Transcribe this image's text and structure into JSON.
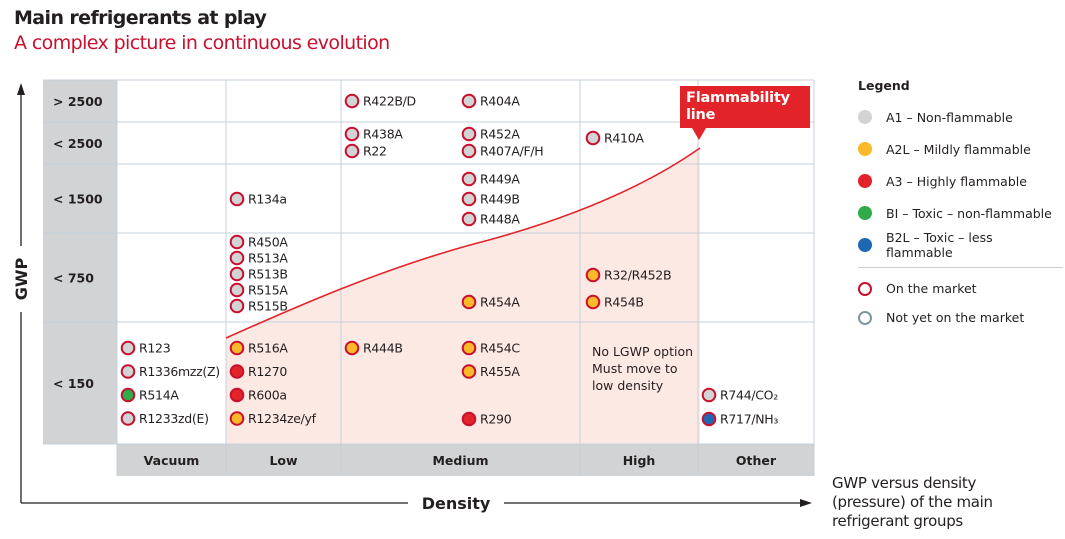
{
  "header": {
    "title": "Main refrigerants at play",
    "subtitle": "A complex picture in continuous evolution"
  },
  "chart_data": {
    "type": "table",
    "title": "Main refrigerants at play",
    "subtitle": "A complex picture in continuous evolution",
    "xlabel": "Density",
    "ylabel": "GWP",
    "x_categories": [
      "Vacuum",
      "Low",
      "Medium",
      "High",
      "Other"
    ],
    "y_categories": [
      "> 2500",
      "< 2500",
      "< 1500",
      "< 750",
      "< 150"
    ],
    "flammability_line_label": "Flammability line",
    "note": {
      "row": "< 150",
      "column": "High",
      "lines": [
        "No LGWP option",
        "Must move to",
        "low density"
      ]
    },
    "caption": [
      "GWP versus density",
      "(pressure) of the main",
      "refrigerant groups"
    ],
    "legend": {
      "title": "Legend",
      "classes": [
        {
          "key": "A1",
          "label": "A1 – Non-flammable",
          "color": "#d1d3d4"
        },
        {
          "key": "A2L",
          "label": "A2L –  Mildly flammable",
          "color": "#fbb829"
        },
        {
          "key": "A3",
          "label": "A3 –  Highly flammable",
          "color": "#e3232a"
        },
        {
          "key": "B1",
          "label": "BI – Toxic – non-flammable",
          "color": "#2fab4a"
        },
        {
          "key": "B2L",
          "label": "B2L – Toxic – less flammable",
          "color": "#1e68b3"
        }
      ],
      "status": [
        {
          "key": "on_market",
          "label": "On the market",
          "color": "#c8102e"
        },
        {
          "key": "not_yet",
          "label": "Not yet on the market",
          "color": "#7f95a3"
        }
      ]
    },
    "refrigerants": [
      {
        "name": "R422B/D",
        "column": "Medium",
        "row": "> 2500",
        "class": "A1",
        "status": "on_market",
        "slot": 0,
        "sub": 0
      },
      {
        "name": "R404A",
        "column": "Medium",
        "row": "> 2500",
        "class": "A1",
        "status": "on_market",
        "slot": 1,
        "sub": 0
      },
      {
        "name": "R438A",
        "column": "Medium",
        "row": "< 2500",
        "class": "A1",
        "status": "on_market",
        "slot": 0,
        "sub": 0
      },
      {
        "name": "R22",
        "column": "Medium",
        "row": "< 2500",
        "class": "A1",
        "status": "on_market",
        "slot": 0,
        "sub": 1
      },
      {
        "name": "R452A",
        "column": "Medium",
        "row": "< 2500",
        "class": "A1",
        "status": "on_market",
        "slot": 1,
        "sub": 0
      },
      {
        "name": "R407A/F/H",
        "column": "Medium",
        "row": "< 2500",
        "class": "A1",
        "status": "on_market",
        "slot": 1,
        "sub": 1
      },
      {
        "name": "R410A",
        "column": "High",
        "row": "< 2500",
        "class": "A1",
        "status": "on_market",
        "slot": 0,
        "sub": 0
      },
      {
        "name": "R134a",
        "column": "Low",
        "row": "< 1500",
        "class": "A1",
        "status": "on_market",
        "slot": 0,
        "sub": 0
      },
      {
        "name": "R449A",
        "column": "Medium",
        "row": "< 1500",
        "class": "A1",
        "status": "on_market",
        "slot": 1,
        "sub": 0
      },
      {
        "name": "R449B",
        "column": "Medium",
        "row": "< 1500",
        "class": "A1",
        "status": "on_market",
        "slot": 1,
        "sub": 1
      },
      {
        "name": "R448A",
        "column": "Medium",
        "row": "< 1500",
        "class": "A1",
        "status": "on_market",
        "slot": 1,
        "sub": 2
      },
      {
        "name": "R450A",
        "column": "Low",
        "row": "< 750",
        "class": "A1",
        "status": "on_market",
        "slot": 0,
        "sub": 0
      },
      {
        "name": "R513A",
        "column": "Low",
        "row": "< 750",
        "class": "A1",
        "status": "on_market",
        "slot": 0,
        "sub": 1
      },
      {
        "name": "R513B",
        "column": "Low",
        "row": "< 750",
        "class": "A1",
        "status": "on_market",
        "slot": 0,
        "sub": 2
      },
      {
        "name": "R515A",
        "column": "Low",
        "row": "< 750",
        "class": "A1",
        "status": "on_market",
        "slot": 0,
        "sub": 3
      },
      {
        "name": "R515B",
        "column": "Low",
        "row": "< 750",
        "class": "A1",
        "status": "on_market",
        "slot": 0,
        "sub": 4
      },
      {
        "name": "R454A",
        "column": "Medium",
        "row": "< 750",
        "class": "A2L",
        "status": "on_market",
        "slot": 1,
        "sub": 0
      },
      {
        "name": "R32/R452B",
        "column": "High",
        "row": "< 750",
        "class": "A2L",
        "status": "on_market",
        "slot": 0,
        "sub": 0
      },
      {
        "name": "R454B",
        "column": "High",
        "row": "< 750",
        "class": "A2L",
        "status": "on_market",
        "slot": 0,
        "sub": 1
      },
      {
        "name": "R123",
        "column": "Vacuum",
        "row": "< 150",
        "class": "A1",
        "status": "on_market",
        "slot": 0,
        "sub": 0
      },
      {
        "name": "R1336mzz(Z)",
        "column": "Vacuum",
        "row": "< 150",
        "class": "A1",
        "status": "on_market",
        "slot": 0,
        "sub": 1
      },
      {
        "name": "R514A",
        "column": "Vacuum",
        "row": "< 150",
        "class": "B1",
        "status": "on_market",
        "slot": 0,
        "sub": 2
      },
      {
        "name": "R1233zd(E)",
        "column": "Vacuum",
        "row": "< 150",
        "class": "A1",
        "status": "on_market",
        "slot": 0,
        "sub": 3
      },
      {
        "name": "R516A",
        "column": "Low",
        "row": "< 150",
        "class": "A2L",
        "status": "on_market",
        "slot": 0,
        "sub": 0
      },
      {
        "name": "R1270",
        "column": "Low",
        "row": "< 150",
        "class": "A3",
        "status": "on_market",
        "slot": 0,
        "sub": 1
      },
      {
        "name": "R600a",
        "column": "Low",
        "row": "< 150",
        "class": "A3",
        "status": "on_market",
        "slot": 0,
        "sub": 2
      },
      {
        "name": "R1234ze/yf",
        "column": "Low",
        "row": "< 150",
        "class": "A2L",
        "status": "on_market",
        "slot": 0,
        "sub": 3
      },
      {
        "name": "R444B",
        "column": "Medium",
        "row": "< 150",
        "class": "A2L",
        "status": "on_market",
        "slot": 0,
        "sub": 0
      },
      {
        "name": "R454C",
        "column": "Medium",
        "row": "< 150",
        "class": "A2L",
        "status": "on_market",
        "slot": 1,
        "sub": 0
      },
      {
        "name": "R455A",
        "column": "Medium",
        "row": "< 150",
        "class": "A2L",
        "status": "on_market",
        "slot": 1,
        "sub": 1
      },
      {
        "name": "R290",
        "column": "Medium",
        "row": "< 150",
        "class": "A3",
        "status": "on_market",
        "slot": 1,
        "sub": 3
      },
      {
        "name": "R744/CO₂",
        "column": "Other",
        "row": "< 150",
        "class": "A1",
        "status": "on_market",
        "slot": 0,
        "sub": 2
      },
      {
        "name": "R717/NH₃",
        "column": "Other",
        "row": "< 150",
        "class": "B2L",
        "status": "on_market",
        "slot": 0,
        "sub": 3
      }
    ]
  },
  "colors": {
    "header_gray": "#d1d3d4",
    "grid_line": "#c5d0da",
    "flammable_zone": "#fde9e4",
    "flammability_line": "#e3232a",
    "title_red": "#c8102e",
    "axis": "#231f20"
  }
}
